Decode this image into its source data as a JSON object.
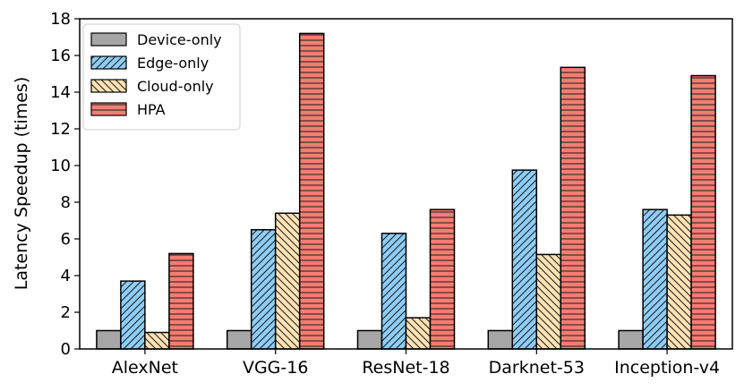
{
  "chart_data": {
    "type": "bar",
    "title": "",
    "xlabel": "",
    "ylabel": "Latency Speedup (times)",
    "ylim": [
      0,
      18
    ],
    "yticks": [
      0,
      2,
      4,
      6,
      8,
      10,
      12,
      14,
      16,
      18
    ],
    "categories": [
      "AlexNet",
      "VGG-16",
      "ResNet-18",
      "Darknet-53",
      "Inception-v4"
    ],
    "legend_position": "top-left",
    "series": [
      {
        "name": "Device-only",
        "values": [
          1,
          1,
          1,
          1,
          1
        ],
        "color": "#a6a6a6",
        "pattern": "none"
      },
      {
        "name": "Edge-only",
        "values": [
          3.7,
          6.5,
          6.3,
          9.75,
          7.6
        ],
        "color": "#8ecdf6",
        "pattern": "diag-forward"
      },
      {
        "name": "Cloud-only",
        "values": [
          0.9,
          7.4,
          1.7,
          5.15,
          7.3
        ],
        "color": "#fde3b4",
        "pattern": "diag-back"
      },
      {
        "name": "HPA",
        "values": [
          5.2,
          17.2,
          7.6,
          15.35,
          14.9
        ],
        "color": "#f47d72",
        "pattern": "horizontal"
      }
    ]
  }
}
